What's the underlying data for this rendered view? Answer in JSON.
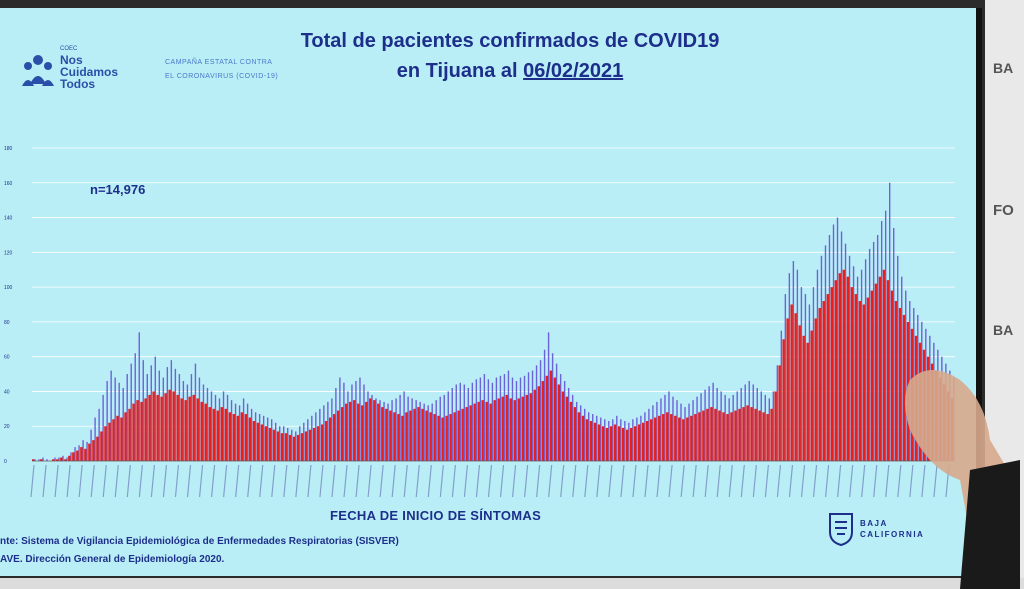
{
  "slide": {
    "title_line1": "Total de pacientes confirmados de COVID19",
    "title_line2_prefix": "en Tijuana al ",
    "title_date": "06/02/2021",
    "n_label": "n=14,976",
    "xlabel": "FECHA DE INICIO DE SÍNTOMAS",
    "source_line1": "nte: Sistema de Vigilancia Epidemiológica de Enfermedades Respiratorias (SISVER)",
    "source_line2": "AVE. Dirección General de Epidemiología 2020."
  },
  "logos": {
    "left_small": "COEC",
    "left_text": "Nos\nCuidamos\nTodos",
    "campaign": "CAMPAÑA ESTATAL CONTRA\nEL CORONAVIRUS (COVID-19)",
    "right_text": "BAJA\nCALIFORNIA"
  },
  "wall": {
    "texts": [
      "BA",
      "FO",
      "BA"
    ]
  },
  "colors": {
    "screen_bg": "#b9eef7",
    "bar_red": "#e8201c",
    "bar_blue": "#6b63d8",
    "title": "#1d2f8a",
    "grid": "#ffffff"
  },
  "chart_data": {
    "type": "bar",
    "title": "Total de pacientes confirmados de COVID19 en Tijuana al 06/02/2021",
    "xlabel": "FECHA DE INICIO DE SÍNTOMAS",
    "ylabel": "",
    "ylim": [
      0,
      180
    ],
    "y_ticks": [
      0,
      20,
      40,
      60,
      80,
      100,
      120,
      140,
      160,
      180
    ],
    "grid": true,
    "x_range": [
      "08/03/20",
      "01/02/21"
    ],
    "series": [
      {
        "values": [
          1,
          0,
          1,
          0,
          0,
          1,
          1,
          2,
          1,
          3,
          5,
          6,
          8,
          7,
          10,
          12,
          14,
          17,
          20,
          22,
          24,
          26,
          25,
          28,
          30,
          33,
          35,
          34,
          36,
          38,
          40,
          38,
          37,
          39,
          41,
          40,
          38,
          36,
          35,
          37,
          38,
          36,
          34,
          33,
          31,
          30,
          29,
          31,
          30,
          28,
          27,
          26,
          28,
          27,
          25,
          23,
          22,
          21,
          20,
          19,
          18,
          17,
          16,
          16,
          15,
          14,
          15,
          16,
          17,
          18,
          19,
          20,
          21,
          23,
          25,
          27,
          29,
          31,
          33,
          34,
          35,
          33,
          32,
          34,
          36,
          35,
          33,
          31,
          30,
          29,
          28,
          27,
          26,
          28,
          29,
          30,
          31,
          30,
          29,
          28,
          27,
          26,
          25,
          26,
          27,
          28,
          29,
          30,
          31,
          32,
          33,
          34,
          35,
          34,
          33,
          35,
          36,
          37,
          38,
          36,
          35,
          36,
          37,
          38,
          39,
          41,
          43,
          46,
          49,
          52,
          48,
          44,
          40,
          37,
          34,
          31,
          28,
          26,
          24,
          23,
          22,
          21,
          20,
          19,
          20,
          21,
          20,
          19,
          18,
          19,
          20,
          21,
          22,
          23,
          24,
          25,
          26,
          27,
          28,
          27,
          26,
          25,
          24,
          25,
          26,
          27,
          28,
          29,
          30,
          31,
          30,
          29,
          28,
          27,
          28,
          29,
          30,
          31,
          32,
          31,
          30,
          29,
          28,
          27,
          30,
          40,
          55,
          70,
          82,
          90,
          85,
          78,
          72,
          68,
          75,
          82,
          88,
          92,
          96,
          100,
          104,
          108,
          110,
          106,
          100,
          96,
          92,
          90,
          94,
          98,
          102,
          106,
          110,
          104,
          98,
          92,
          88,
          84,
          80,
          76,
          72,
          68,
          64,
          60,
          56,
          52,
          48,
          44,
          40,
          36
        ]
      },
      {
        "values": [
          1,
          1,
          2,
          1,
          0,
          2,
          2,
          3,
          2,
          5,
          8,
          9,
          12,
          11,
          18,
          25,
          30,
          38,
          46,
          52,
          48,
          45,
          42,
          50,
          56,
          62,
          74,
          58,
          50,
          55,
          60,
          52,
          48,
          54,
          58,
          53,
          50,
          46,
          44,
          50,
          56,
          48,
          44,
          42,
          40,
          38,
          36,
          40,
          38,
          35,
          33,
          32,
          36,
          33,
          30,
          28,
          27,
          26,
          25,
          24,
          22,
          20,
          20,
          19,
          18,
          17,
          20,
          22,
          24,
          26,
          28,
          30,
          32,
          34,
          36,
          42,
          48,
          45,
          40,
          44,
          46,
          48,
          44,
          40,
          38,
          36,
          35,
          34,
          33,
          35,
          36,
          38,
          40,
          37,
          36,
          35,
          34,
          33,
          32,
          33,
          35,
          37,
          38,
          40,
          42,
          44,
          45,
          44,
          42,
          45,
          47,
          48,
          50,
          47,
          45,
          48,
          49,
          50,
          52,
          48,
          46,
          48,
          49,
          51,
          52,
          55,
          58,
          64,
          74,
          62,
          56,
          50,
          46,
          42,
          38,
          34,
          32,
          30,
          28,
          27,
          26,
          25,
          24,
          23,
          24,
          26,
          24,
          23,
          22,
          24,
          25,
          26,
          28,
          30,
          32,
          34,
          36,
          38,
          40,
          37,
          35,
          33,
          31,
          33,
          35,
          37,
          39,
          41,
          43,
          45,
          42,
          40,
          38,
          36,
          38,
          40,
          42,
          44,
          46,
          44,
          42,
          40,
          38,
          36,
          40,
          55,
          75,
          96,
          108,
          115,
          110,
          100,
          96,
          90,
          100,
          110,
          118,
          124,
          130,
          136,
          140,
          132,
          125,
          118,
          112,
          106,
          110,
          116,
          122,
          126,
          130,
          138,
          144,
          160,
          134,
          118,
          106,
          98,
          92,
          88,
          84,
          80,
          76,
          72,
          68,
          64,
          60,
          56,
          52,
          48
        ]
      }
    ]
  }
}
